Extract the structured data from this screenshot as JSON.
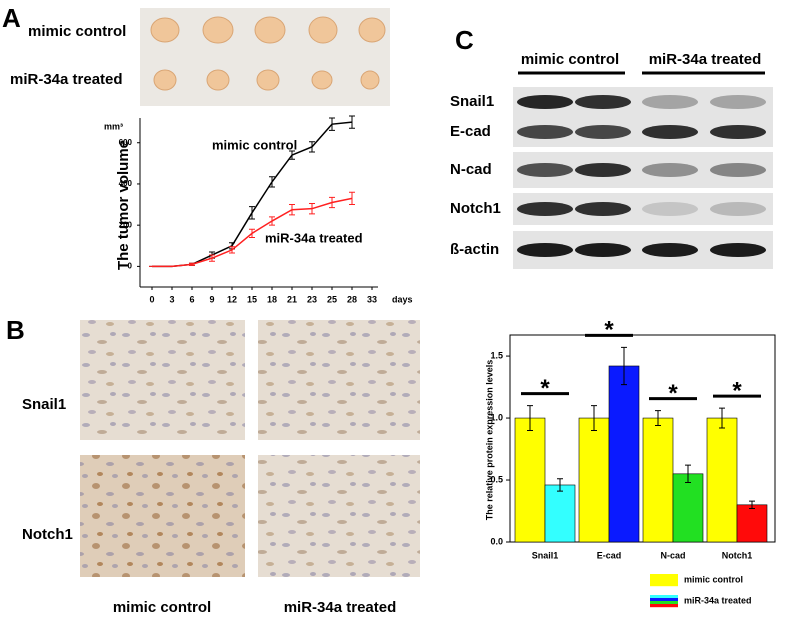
{
  "panel_labels": [
    "A",
    "B",
    "C"
  ],
  "tumor_photo": {
    "labels": [
      "mimic control",
      "miR-34a treated"
    ]
  },
  "blot": {
    "groups": [
      "mimic control",
      "miR-34a treated"
    ],
    "rows": [
      "Snail1",
      "E-cad",
      "N-cad",
      "Notch1",
      "ß-actin"
    ]
  },
  "ihc": {
    "rows": [
      "Snail1",
      "Notch1"
    ],
    "columns": [
      "mimic control",
      "miR-34a treated"
    ]
  },
  "chart_data": [
    {
      "type": "line",
      "y_label": "The tumor volume",
      "y_unit": "mm³",
      "x_unit": "days",
      "categories": [
        "0",
        "3",
        "6",
        "9",
        "12",
        "15",
        "18",
        "21",
        "23",
        "25",
        "28",
        "33"
      ],
      "series": [
        {
          "name": "mimic control",
          "color": "#000000",
          "values": [
            0,
            0,
            10,
            55,
            100,
            260,
            410,
            540,
            580,
            690,
            700,
            null
          ],
          "errors": [
            0,
            0,
            5,
            15,
            15,
            30,
            25,
            20,
            25,
            30,
            30,
            null
          ]
        },
        {
          "name": "miR-34a treated",
          "color": "#ff2020",
          "values": [
            0,
            0,
            10,
            40,
            80,
            160,
            220,
            275,
            280,
            310,
            330,
            null
          ],
          "errors": [
            0,
            0,
            5,
            15,
            15,
            20,
            20,
            25,
            25,
            25,
            30,
            null
          ]
        }
      ],
      "ylim": [
        -100,
        720
      ],
      "yticks": [
        0,
        200,
        400,
        600
      ]
    },
    {
      "type": "bar",
      "y_label": "The relative protein expression levels",
      "categories": [
        "Snail1",
        "E-cad",
        "N-cad",
        "Notch1"
      ],
      "series": [
        {
          "name": "mimic control",
          "colors": [
            "#ffff00",
            "#ffff00",
            "#ffff00",
            "#ffff00"
          ],
          "values": [
            1.0,
            1.0,
            1.0,
            1.0
          ],
          "errors": [
            0.1,
            0.1,
            0.06,
            0.08
          ]
        },
        {
          "name": "miR-34a treated",
          "colors": [
            "#33ffff",
            "#0a1aff",
            "#22e022",
            "#ff0a0a"
          ],
          "values": [
            0.46,
            1.42,
            0.55,
            0.3
          ],
          "errors": [
            0.05,
            0.15,
            0.07,
            0.03
          ]
        }
      ],
      "annotations": [
        "*",
        "*",
        "*",
        "*"
      ],
      "ylim": [
        0,
        1.67
      ],
      "yticks": [
        {
          "value": 0,
          "label": "0.0"
        },
        0.5,
        {
          "value": 1.0,
          "label": "1.0"
        },
        1.5
      ]
    }
  ]
}
